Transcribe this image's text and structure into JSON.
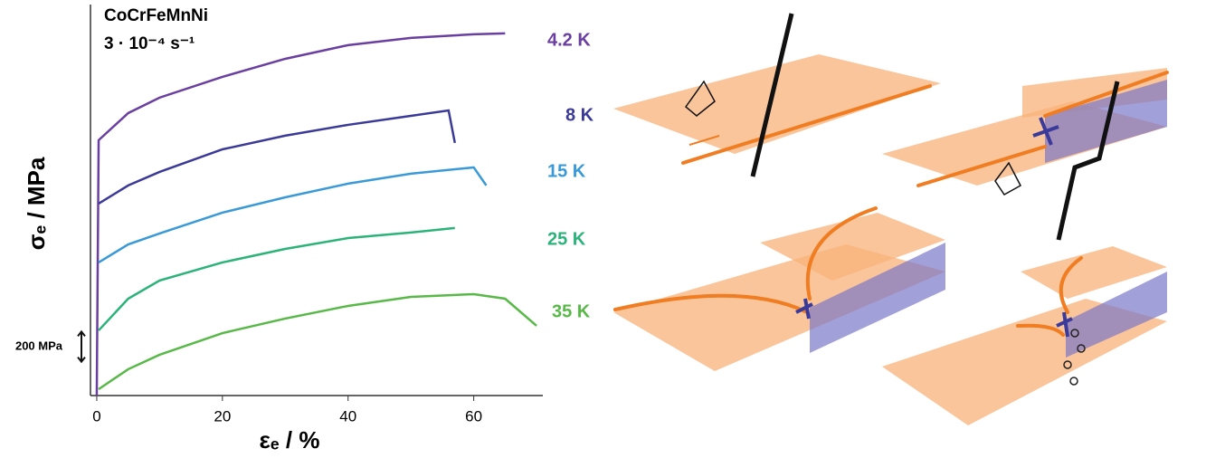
{
  "chart_data": {
    "type": "line",
    "title": "CoCrFeMnNi",
    "subtitle": "3 · 10⁻⁴ s⁻¹",
    "xlabel": "εₑ / %",
    "ylabel": "σₑ / MPa",
    "xlim": [
      -1,
      71
    ],
    "xticks": [
      0,
      20,
      40,
      60
    ],
    "ylim": [
      0,
      2600
    ],
    "scale_bar": {
      "value": 200,
      "label": "200 MPa"
    },
    "series": [
      {
        "name": "4.2 K",
        "color": "#6a3fa0",
        "x": [
          0,
          0.3,
          5,
          10,
          20,
          30,
          40,
          50,
          60,
          65
        ],
        "values": [
          0,
          1698,
          1878,
          1981,
          2119,
          2239,
          2330,
          2378,
          2402,
          2408
        ]
      },
      {
        "name": "8 K",
        "color": "#3b3a98",
        "x": [
          0.3,
          5,
          10,
          20,
          30,
          40,
          50,
          56,
          57
        ],
        "values": [
          1276,
          1397,
          1487,
          1637,
          1728,
          1800,
          1860,
          1896,
          1680
        ]
      },
      {
        "name": "15 K",
        "color": "#3a9ad8",
        "x": [
          0.3,
          5,
          10,
          20,
          30,
          40,
          50,
          60,
          62
        ],
        "values": [
          885,
          1005,
          1078,
          1216,
          1318,
          1409,
          1475,
          1517,
          1397
        ]
      },
      {
        "name": "25 K",
        "color": "#2bb37a",
        "x": [
          0.3,
          5,
          10,
          20,
          30,
          40,
          50,
          57
        ],
        "values": [
          433,
          644,
          765,
          885,
          975,
          1047,
          1084,
          1114
        ]
      },
      {
        "name": "35 K",
        "color": "#58b948",
        "x": [
          0.3,
          5,
          10,
          20,
          30,
          40,
          50,
          60,
          65,
          70
        ],
        "values": [
          42,
          175,
          271,
          415,
          512,
          596,
          656,
          674,
          644,
          464
        ]
      }
    ]
  }
}
